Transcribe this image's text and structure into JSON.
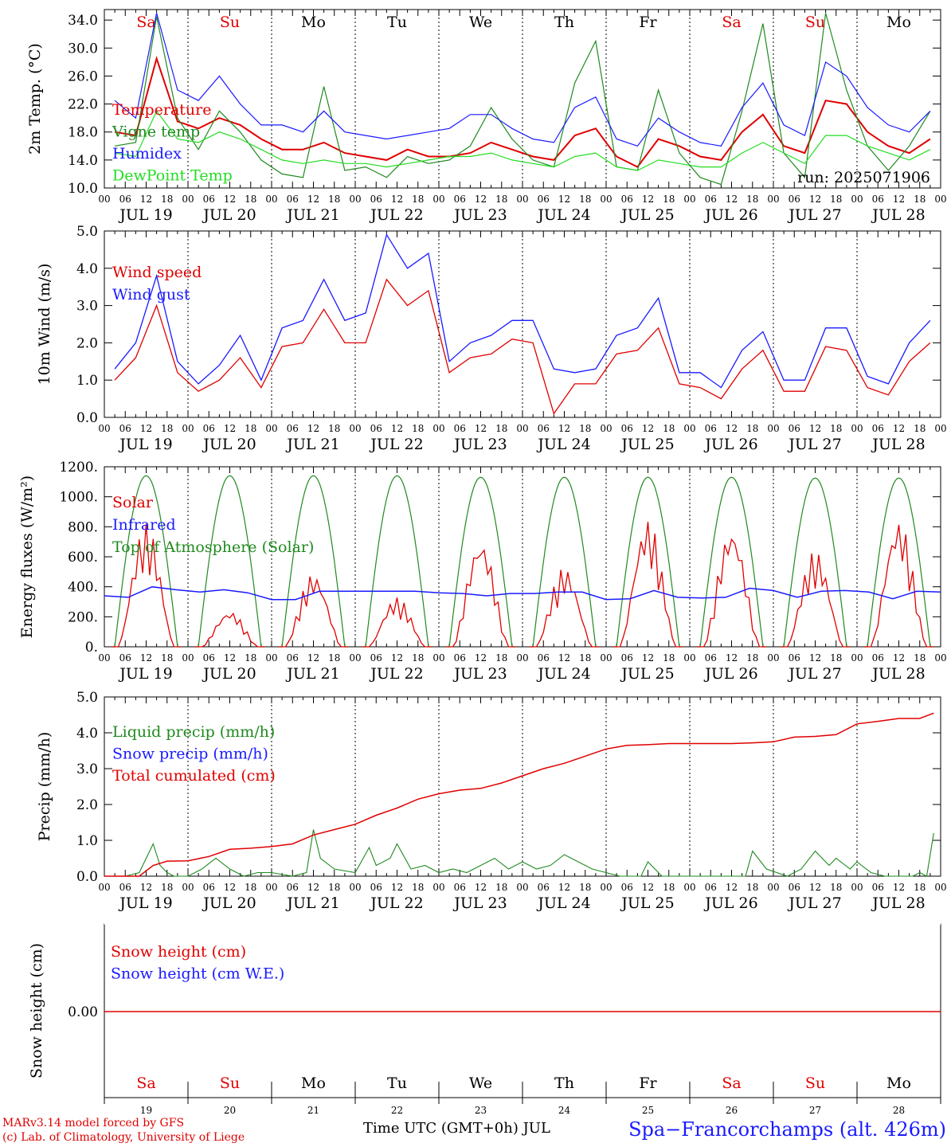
{
  "run_label": "run: 2025071906",
  "day_names": [
    "Sa",
    "Su",
    "Mo",
    "Tu",
    "We",
    "Th",
    "Fr",
    "Sa",
    "Su",
    "Mo"
  ],
  "weekend_indices": [
    0,
    1,
    7,
    8
  ],
  "date_labels": [
    "JUL 19",
    "JUL 20",
    "JUL 21",
    "JUL 22",
    "JUL 23",
    "JUL 24",
    "JUL 25",
    "JUL 26",
    "JUL 27",
    "JUL 28"
  ],
  "bottom_day_numbers": [
    "19",
    "20",
    "21",
    "22",
    "23",
    "24",
    "25",
    "26",
    "27",
    "28"
  ],
  "hour_ticks": [
    "00",
    "06",
    "12",
    "18"
  ],
  "x_title": "Time UTC (GMT+0h) JUL",
  "credits": [
    "MARv3.14 model forced by GFS",
    "(c) Lab. of Climatology, University of Liege"
  ],
  "station": "Spa−Francorchamps (alt. 426m)",
  "colors": {
    "red": "#e00000",
    "green": "#1f8a1f",
    "blue": "#1a1aff",
    "lightgreen": "#22dd22",
    "grid": "#000000"
  },
  "chart_data": [
    {
      "type": "line",
      "id": "temperature",
      "ylabel": "2m Temp. (°C)",
      "ylim": [
        10,
        35.5
      ],
      "yticks": [
        10.0,
        14.0,
        18.0,
        22.0,
        26.0,
        30.0,
        34.0
      ],
      "ytick_labels": [
        "10.0",
        "14.0",
        "18.0",
        "22.0",
        "26.0",
        "30.0",
        "34.0"
      ],
      "x_hours": [
        0,
        6,
        12,
        18,
        24,
        30,
        36,
        42,
        48,
        54,
        60,
        66,
        72,
        78,
        84,
        90,
        96,
        102,
        108,
        114,
        120,
        126,
        132,
        138,
        144,
        150,
        156,
        162,
        168,
        174,
        180,
        186,
        192,
        198,
        204,
        210,
        216,
        222,
        228,
        234
      ],
      "series": [
        {
          "name": "Temperature",
          "color": "red",
          "values": [
            18.0,
            17.5,
            28.5,
            19.5,
            18.5,
            20.0,
            19.0,
            17.0,
            15.5,
            15.5,
            16.5,
            15.0,
            14.5,
            14.0,
            15.5,
            14.5,
            14.5,
            15.0,
            16.5,
            15.5,
            14.5,
            14.0,
            17.5,
            18.5,
            14.5,
            13.0,
            17.0,
            16.0,
            14.5,
            14.0,
            18.0,
            20.5,
            16.0,
            15.0,
            22.5,
            22.0,
            18.0,
            16.0,
            15.0,
            17.0
          ]
        },
        {
          "name": "Vigne temp",
          "color": "green",
          "values": [
            16.0,
            16.5,
            34.5,
            20.0,
            15.5,
            21.0,
            18.0,
            14.0,
            12.0,
            11.5,
            24.5,
            12.5,
            13.0,
            11.5,
            14.5,
            13.5,
            14.0,
            16.0,
            21.5,
            17.0,
            14.0,
            13.0,
            25.0,
            31.0,
            13.0,
            12.5,
            24.0,
            15.0,
            11.5,
            10.5,
            21.0,
            33.5,
            15.0,
            11.5,
            35.0,
            24.0,
            16.0,
            12.5,
            16.0,
            21.0
          ]
        },
        {
          "name": "Humidex",
          "color": "blue",
          "values": [
            22.5,
            20.0,
            35.0,
            24.0,
            22.5,
            26.0,
            22.0,
            19.0,
            19.0,
            18.0,
            21.0,
            18.0,
            17.5,
            17.0,
            17.5,
            18.0,
            18.5,
            20.5,
            20.5,
            18.5,
            17.0,
            16.5,
            21.5,
            23.0,
            17.0,
            16.0,
            20.0,
            18.0,
            16.5,
            16.0,
            21.5,
            25.0,
            19.0,
            17.5,
            28.0,
            26.0,
            21.5,
            19.0,
            18.0,
            21.0
          ]
        },
        {
          "name": "DewPoint Temp",
          "color": "lightgreen",
          "values": [
            15.0,
            14.5,
            21.0,
            17.0,
            16.5,
            18.0,
            17.0,
            15.5,
            14.0,
            13.5,
            14.0,
            13.5,
            13.5,
            13.0,
            13.5,
            14.0,
            14.5,
            14.5,
            15.0,
            14.0,
            13.5,
            13.0,
            14.5,
            15.0,
            13.0,
            12.5,
            14.0,
            13.5,
            13.0,
            13.0,
            15.0,
            16.5,
            15.0,
            13.5,
            17.5,
            17.5,
            16.0,
            15.0,
            14.0,
            15.5
          ]
        }
      ]
    },
    {
      "type": "line",
      "id": "wind",
      "ylabel": "10m Wind (m/s)",
      "ylim": [
        0,
        5.0
      ],
      "yticks": [
        0.0,
        1.0,
        2.0,
        3.0,
        4.0,
        5.0
      ],
      "ytick_labels": [
        "0.0",
        "1.0",
        "2.0",
        "3.0",
        "4.0",
        "5.0"
      ],
      "x_hours": [
        0,
        6,
        12,
        18,
        24,
        30,
        36,
        42,
        48,
        54,
        60,
        66,
        72,
        78,
        84,
        90,
        96,
        102,
        108,
        114,
        120,
        126,
        132,
        138,
        144,
        150,
        156,
        162,
        168,
        174,
        180,
        186,
        192,
        198,
        204,
        210,
        216,
        222,
        228,
        234
      ],
      "series": [
        {
          "name": "Wind speed",
          "color": "red",
          "values": [
            1.0,
            1.6,
            3.0,
            1.2,
            0.7,
            1.0,
            1.6,
            0.8,
            1.9,
            2.0,
            2.9,
            2.0,
            2.0,
            3.7,
            3.0,
            3.4,
            1.2,
            1.6,
            1.7,
            2.1,
            2.0,
            0.1,
            0.9,
            0.9,
            1.7,
            1.8,
            2.4,
            0.9,
            0.8,
            0.5,
            1.3,
            1.8,
            0.7,
            0.7,
            1.9,
            1.8,
            0.8,
            0.6,
            1.5,
            2.0
          ]
        },
        {
          "name": "Wind gust",
          "color": "blue",
          "values": [
            1.3,
            2.0,
            3.8,
            1.5,
            0.9,
            1.4,
            2.2,
            1.0,
            2.4,
            2.6,
            3.7,
            2.6,
            2.8,
            4.9,
            4.0,
            4.4,
            1.5,
            2.0,
            2.2,
            2.6,
            2.6,
            1.3,
            1.2,
            1.3,
            2.2,
            2.4,
            3.2,
            1.2,
            1.2,
            0.8,
            1.8,
            2.3,
            1.0,
            1.0,
            2.4,
            2.4,
            1.1,
            0.9,
            2.0,
            2.6
          ]
        }
      ]
    },
    {
      "type": "line",
      "id": "energy",
      "ylabel": "Energy fluxes (W/m²)",
      "ylim": [
        0,
        1200
      ],
      "yticks": [
        0,
        200,
        400,
        600,
        800,
        1000,
        1200
      ],
      "ytick_labels": [
        "0.",
        "200.",
        "400.",
        "600.",
        "800.",
        "1000.",
        "1200."
      ],
      "series": [
        {
          "name": "Solar",
          "color": "red",
          "peaks": [
            820,
            240,
            490,
            330,
            720,
            530,
            850,
            800,
            640,
            850
          ]
        },
        {
          "name": "Infrared",
          "color": "blue",
          "values": [
            340,
            330,
            400,
            380,
            365,
            380,
            360,
            315,
            315,
            370,
            370,
            370,
            370,
            370,
            360,
            355,
            340,
            355,
            355,
            365,
            365,
            315,
            320,
            375,
            330,
            325,
            330,
            390,
            375,
            330,
            370,
            375,
            365,
            320,
            370,
            365
          ]
        },
        {
          "name": "Top of Atmosphere (Solar)",
          "color": "green",
          "peaks": [
            1140,
            1140,
            1140,
            1140,
            1130,
            1130,
            1130,
            1130,
            1125,
            1125
          ]
        }
      ]
    },
    {
      "type": "line",
      "id": "precip",
      "ylabel": "Precip (mm/h)",
      "ylim": [
        0,
        5.0
      ],
      "yticks": [
        0.0,
        1.0,
        2.0,
        3.0,
        4.0,
        5.0
      ],
      "ytick_labels": [
        "0.0",
        "1.0",
        "2.0",
        "3.0",
        "4.0",
        "5.0"
      ],
      "series": [
        {
          "name": "Liquid precip (mm/h)",
          "color": "green",
          "x_hours": [
            0,
            6,
            10,
            14,
            16,
            18,
            20,
            24,
            28,
            32,
            36,
            40,
            44,
            48,
            54,
            58,
            60,
            62,
            66,
            72,
            76,
            78,
            82,
            84,
            88,
            92,
            96,
            100,
            104,
            108,
            112,
            116,
            120,
            124,
            128,
            132,
            136,
            140,
            144,
            148,
            150,
            154,
            156,
            160,
            164,
            168,
            172,
            176,
            180,
            184,
            186,
            190,
            196,
            200,
            204,
            208,
            210,
            214,
            216,
            220,
            224,
            228,
            232,
            234,
            236,
            238
          ],
          "values": [
            0,
            0,
            0.1,
            0.9,
            0.3,
            0.1,
            0,
            0,
            0.2,
            0.5,
            0.2,
            0,
            0.1,
            0.1,
            0,
            0.1,
            1.3,
            0.5,
            0.2,
            0.1,
            0.8,
            0.3,
            0.5,
            0.9,
            0.2,
            0.3,
            0.1,
            0.2,
            0.1,
            0.3,
            0.5,
            0.2,
            0.4,
            0.2,
            0.3,
            0.6,
            0.4,
            0.2,
            0.1,
            0,
            0,
            0,
            0.4,
            0,
            0,
            0,
            0,
            0,
            0,
            0,
            0.7,
            0.2,
            0,
            0.2,
            0.7,
            0.3,
            0.5,
            0.2,
            0.4,
            0.1,
            0,
            0,
            0,
            0.1,
            0,
            1.2
          ]
        },
        {
          "name": "Snow precip (mm/h)",
          "color": "blue",
          "values": []
        },
        {
          "name": "Total cumulated (cm)",
          "color": "red",
          "x_hours": [
            0,
            10,
            14,
            18,
            24,
            30,
            36,
            42,
            48,
            54,
            60,
            66,
            72,
            78,
            84,
            90,
            96,
            102,
            108,
            114,
            120,
            126,
            132,
            138,
            144,
            150,
            156,
            162,
            168,
            174,
            180,
            186,
            192,
            198,
            204,
            210,
            216,
            222,
            228,
            234,
            238
          ],
          "values": [
            0,
            0,
            0.3,
            0.42,
            0.43,
            0.55,
            0.75,
            0.78,
            0.83,
            0.9,
            1.15,
            1.3,
            1.45,
            1.7,
            1.9,
            2.15,
            2.3,
            2.4,
            2.45,
            2.6,
            2.8,
            3.0,
            3.15,
            3.35,
            3.55,
            3.65,
            3.67,
            3.7,
            3.7,
            3.7,
            3.7,
            3.72,
            3.75,
            3.88,
            3.9,
            3.95,
            4.25,
            4.32,
            4.4,
            4.4,
            4.55
          ]
        }
      ]
    },
    {
      "type": "line",
      "id": "snow",
      "ylabel": "Snow height (cm)",
      "yticks": [
        0.0
      ],
      "ytick_labels": [
        "0.00"
      ],
      "series": [
        {
          "name": "Snow height (cm)",
          "color": "red",
          "values": [
            0,
            0
          ]
        },
        {
          "name": "Snow height (cm W.E.)",
          "color": "blue",
          "values": [
            0,
            0
          ]
        }
      ]
    }
  ]
}
